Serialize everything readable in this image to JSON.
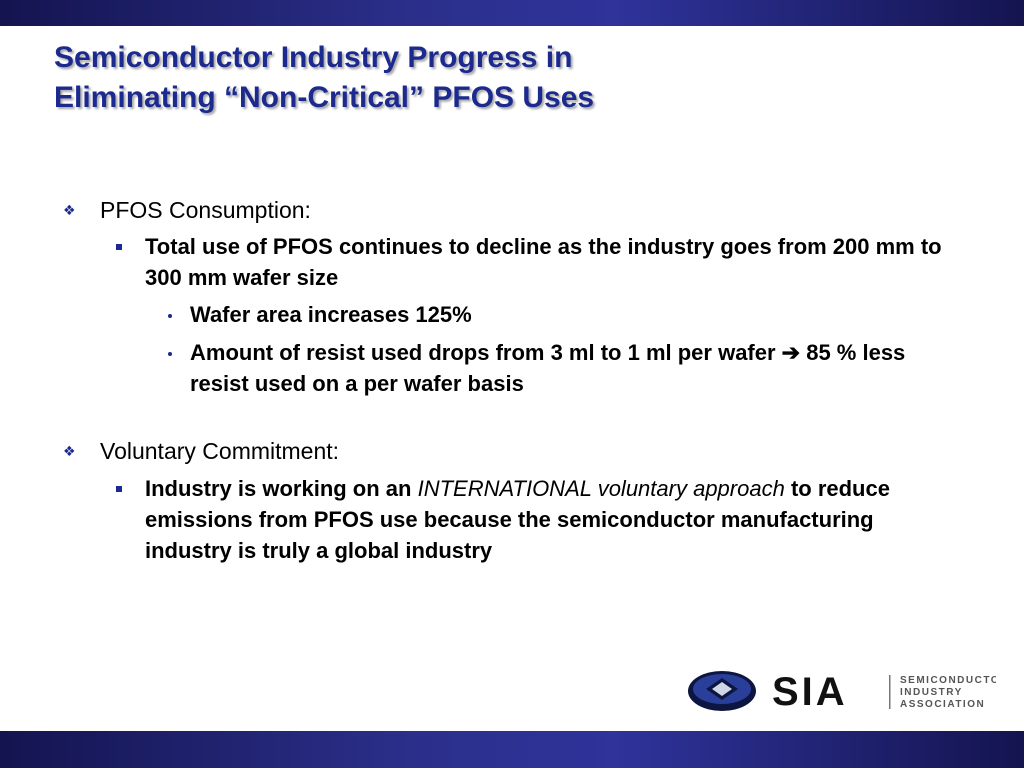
{
  "title": {
    "line1": "Semiconductor Industry Progress in",
    "line2": "Eliminating “Non-Critical” PFOS Uses"
  },
  "section1": {
    "heading": "PFOS Consumption:",
    "point": "Total use of PFOS continues to decline as the industry goes from 200 mm to 300 mm wafer size",
    "sub1": "Wafer area increases 125%",
    "sub2_a": "Amount of resist used drops from 3 ml to 1 ml per wafer ",
    "sub2_arrow": "➔",
    "sub2_b": " 85 % less resist used on a per wafer basis"
  },
  "section2": {
    "heading": "Voluntary Commitment:",
    "point_a": "Industry is working on an ",
    "point_italic": "INTERNATIONAL voluntary approach",
    "point_b": " to reduce emissions from PFOS use because the semiconductor manufacturing industry is truly a global industry"
  },
  "logo": {
    "acronym": "SIA",
    "line1": "SEMICONDUCTOR",
    "line2": "INDUSTRY",
    "line3": "ASSOCIATION"
  },
  "colors": {
    "title": "#1c2a8f",
    "band": "#2b2f8a"
  }
}
